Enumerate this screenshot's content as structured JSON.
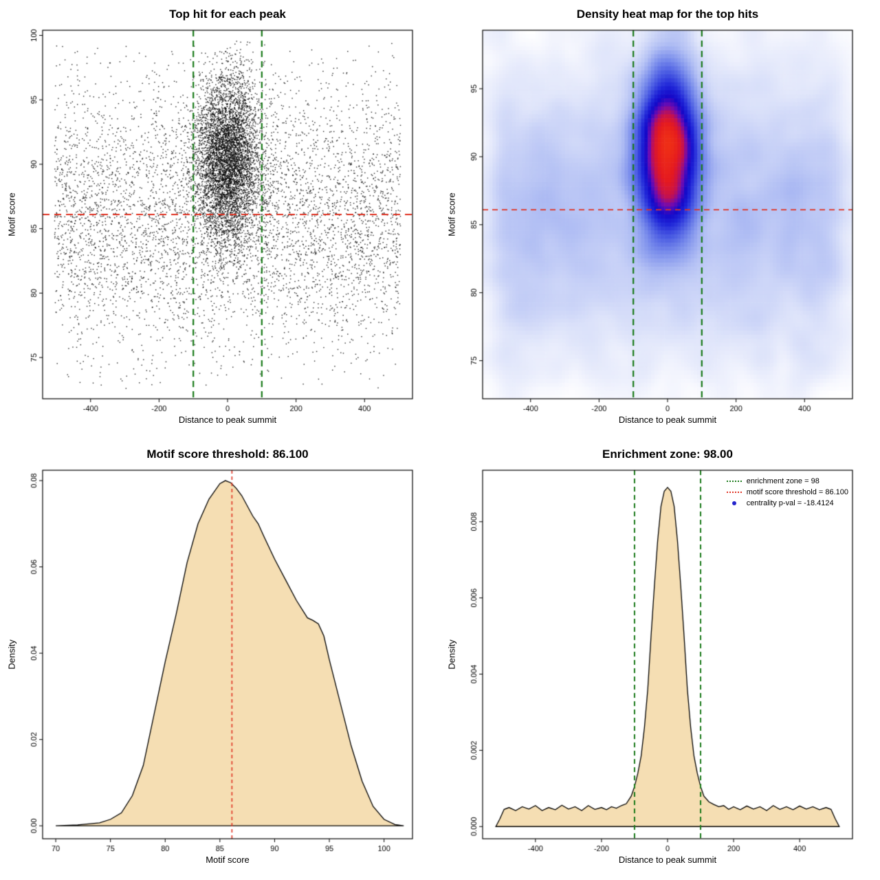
{
  "figure": {
    "background": "#ffffff",
    "frame_color": "#000000",
    "accent_green": "#1a7a1a",
    "accent_red": "#e03222",
    "fill_wheat": "#f5deb3",
    "legend_dot_blue": "#2424cc"
  },
  "stats": {
    "motif_score_threshold": "86.100",
    "enrichment_zone": "98.00",
    "centrality_p_val": "-18.4124"
  },
  "chart_data": [
    {
      "type": "scatter",
      "title": "Top hit for each peak",
      "xlabel": "Distance to peak summit",
      "ylabel": "Motif score",
      "xlim": [
        -540,
        540
      ],
      "ylim": [
        71.8,
        100.4
      ],
      "xticks": [
        -400,
        -200,
        0,
        200,
        400
      ],
      "xtick_labels": [
        "-400",
        "-200",
        "0",
        "200",
        "400"
      ],
      "yticks": [
        75,
        80,
        85,
        90,
        95,
        100
      ],
      "ytick_labels": [
        "75",
        "80",
        "85",
        "90",
        "95",
        "100"
      ],
      "enrichment_zone_x": [
        -100,
        100
      ],
      "motif_score_threshold": 86.1,
      "vline_color": "#1a7a1a",
      "hline_color": "#e03222",
      "point_color": "rgba(0,0,0,0.88)",
      "cloud": {
        "seed": 42,
        "background": {
          "n": 5200,
          "x_min": -505,
          "x_max": 505,
          "y_mean": 86.0,
          "y_sd": 5.4,
          "y_min": 72.3,
          "y_max": 99.4
        },
        "cluster": {
          "n": 5400,
          "x_mean": 0,
          "x_sd": 46,
          "y_mean": 90.4,
          "y_sd": 3.3,
          "y_min": 74.0,
          "y_max": 99.6
        }
      }
    },
    {
      "type": "heatmap",
      "title": "Density heat map for the top hits",
      "xlabel": "Distance to peak summit",
      "ylabel": "Motif score",
      "xlim": [
        -540,
        540
      ],
      "ylim": [
        72.2,
        99.3
      ],
      "xticks": [
        -400,
        -200,
        0,
        200,
        400
      ],
      "xtick_labels": [
        "-400",
        "-200",
        "0",
        "200",
        "400"
      ],
      "yticks": [
        75,
        80,
        85,
        90,
        95
      ],
      "ytick_labels": [
        "75",
        "80",
        "85",
        "90",
        "95"
      ],
      "enrichment_zone_x": [
        -100,
        100
      ],
      "motif_score_threshold": 86.1,
      "vline_color": "#1a7a1a",
      "hline_color": "#e03222",
      "cloud": {
        "seed": 1337,
        "background": {
          "n": 4200,
          "x_min": -505,
          "x_max": 505,
          "y_mean": 85.8,
          "y_sd": 5.2,
          "y_min": 73.0,
          "y_max": 99.0
        },
        "cluster": {
          "n": 7200,
          "x_mean": 0,
          "x_sd": 42,
          "y_mean": 90.2,
          "y_sd": 3.2,
          "y_min": 76.0,
          "y_max": 99.2
        }
      },
      "grid_nx": 112,
      "grid_ny": 92,
      "blur_radius": 2,
      "blur_passes": 3,
      "gamma": 0.42,
      "colormap": [
        [
          0,
          "#ffffff"
        ],
        [
          0.05,
          "#f7f8fe"
        ],
        [
          0.15,
          "#dde3fa"
        ],
        [
          0.28,
          "#b3c0f4"
        ],
        [
          0.4,
          "#7d90ec"
        ],
        [
          0.52,
          "#4859e2"
        ],
        [
          0.62,
          "#1f25d8"
        ],
        [
          0.7,
          "#1408c8"
        ],
        [
          0.78,
          "#6e0bb2"
        ],
        [
          0.85,
          "#c31150"
        ],
        [
          0.92,
          "#e51a1f"
        ],
        [
          1,
          "#ee2e16"
        ]
      ]
    },
    {
      "type": "area",
      "title": "Motif score threshold: 86.100",
      "xlabel": "Motif score",
      "ylabel": "Density",
      "xlim": [
        68.8,
        102.6
      ],
      "ylim": [
        -0.003,
        0.0824
      ],
      "xticks": [
        70,
        75,
        80,
        85,
        90,
        95,
        100
      ],
      "xtick_labels": [
        "70",
        "75",
        "80",
        "85",
        "90",
        "95",
        "100"
      ],
      "yticks": [
        0,
        0.02,
        0.04,
        0.06,
        0.08
      ],
      "ytick_labels": [
        "0.00",
        "0.02",
        "0.04",
        "0.06",
        "0.08"
      ],
      "fill": "#f5deb3",
      "line_color": "#000000",
      "threshold_x": 86.1,
      "vline_color": "#e03222",
      "points": [
        [
          70,
          0
        ],
        [
          72,
          0.0002
        ],
        [
          74,
          0.0007
        ],
        [
          75,
          0.0015
        ],
        [
          76,
          0.003
        ],
        [
          77,
          0.007
        ],
        [
          78,
          0.014
        ],
        [
          79,
          0.026
        ],
        [
          80,
          0.038
        ],
        [
          81,
          0.049
        ],
        [
          82,
          0.061
        ],
        [
          83,
          0.07
        ],
        [
          84,
          0.0757
        ],
        [
          85,
          0.0793
        ],
        [
          85.5,
          0.08
        ],
        [
          86,
          0.0795
        ],
        [
          86.5,
          0.0782
        ],
        [
          87,
          0.0765
        ],
        [
          88,
          0.0718
        ],
        [
          88.5,
          0.07
        ],
        [
          89,
          0.0672
        ],
        [
          90,
          0.0618
        ],
        [
          91,
          0.057
        ],
        [
          92,
          0.0522
        ],
        [
          93,
          0.0482
        ],
        [
          93.5,
          0.0476
        ],
        [
          94,
          0.0468
        ],
        [
          94.5,
          0.044
        ],
        [
          95,
          0.0385
        ],
        [
          96,
          0.0285
        ],
        [
          97,
          0.0185
        ],
        [
          98,
          0.0103
        ],
        [
          99,
          0.0045
        ],
        [
          100,
          0.0015
        ],
        [
          101,
          0.0003
        ],
        [
          101.8,
          0
        ]
      ]
    },
    {
      "type": "area",
      "title": "Enrichment zone: 98.00",
      "xlabel": "Distance to peak summit",
      "ylabel": "Density",
      "xlim": [
        -560,
        560
      ],
      "ylim": [
        -0.00032,
        0.00935
      ],
      "xticks": [
        -400,
        -200,
        0,
        200,
        400
      ],
      "xtick_labels": [
        "-400",
        "-200",
        "0",
        "200",
        "400"
      ],
      "yticks": [
        0,
        0.002,
        0.004,
        0.006,
        0.008
      ],
      "ytick_labels": [
        "0.000",
        "0.002",
        "0.004",
        "0.006",
        "0.008"
      ],
      "fill": "#f5deb3",
      "line_color": "#000000",
      "enrichment_zone_x": [
        -100,
        100
      ],
      "vline_color": "#1a7a1a",
      "points": [
        [
          -520,
          0
        ],
        [
          -508,
          0.0002
        ],
        [
          -495,
          0.00045
        ],
        [
          -480,
          0.0005
        ],
        [
          -460,
          0.00042
        ],
        [
          -440,
          0.00052
        ],
        [
          -420,
          0.00046
        ],
        [
          -400,
          0.00055
        ],
        [
          -380,
          0.00042
        ],
        [
          -360,
          0.0005
        ],
        [
          -340,
          0.00044
        ],
        [
          -320,
          0.00056
        ],
        [
          -300,
          0.00046
        ],
        [
          -280,
          0.00052
        ],
        [
          -260,
          0.00042
        ],
        [
          -240,
          0.00055
        ],
        [
          -220,
          0.00045
        ],
        [
          -200,
          0.0005
        ],
        [
          -185,
          0.00044
        ],
        [
          -170,
          0.00052
        ],
        [
          -155,
          0.00048
        ],
        [
          -140,
          0.00055
        ],
        [
          -125,
          0.0006
        ],
        [
          -110,
          0.0008
        ],
        [
          -100,
          0.00105
        ],
        [
          -90,
          0.0014
        ],
        [
          -80,
          0.00185
        ],
        [
          -70,
          0.0026
        ],
        [
          -60,
          0.0036
        ],
        [
          -50,
          0.005
        ],
        [
          -40,
          0.0063
        ],
        [
          -30,
          0.0075
        ],
        [
          -20,
          0.0084
        ],
        [
          -10,
          0.0088
        ],
        [
          0,
          0.0089
        ],
        [
          10,
          0.0088
        ],
        [
          20,
          0.0084
        ],
        [
          30,
          0.0075
        ],
        [
          40,
          0.0063
        ],
        [
          50,
          0.005
        ],
        [
          60,
          0.0036
        ],
        [
          70,
          0.0026
        ],
        [
          80,
          0.00185
        ],
        [
          90,
          0.0014
        ],
        [
          100,
          0.00105
        ],
        [
          110,
          0.0008
        ],
        [
          125,
          0.00065
        ],
        [
          140,
          0.00058
        ],
        [
          155,
          0.00052
        ],
        [
          170,
          0.00055
        ],
        [
          185,
          0.00045
        ],
        [
          200,
          0.00052
        ],
        [
          220,
          0.00044
        ],
        [
          240,
          0.00054
        ],
        [
          260,
          0.00046
        ],
        [
          280,
          0.00052
        ],
        [
          300,
          0.00042
        ],
        [
          320,
          0.00055
        ],
        [
          340,
          0.00045
        ],
        [
          360,
          0.00052
        ],
        [
          380,
          0.00044
        ],
        [
          400,
          0.00054
        ],
        [
          420,
          0.00046
        ],
        [
          440,
          0.00052
        ],
        [
          460,
          0.00044
        ],
        [
          480,
          0.0005
        ],
        [
          495,
          0.00045
        ],
        [
          508,
          0.0002
        ],
        [
          520,
          0
        ]
      ],
      "legend": {
        "entries": [
          {
            "label": "enrichment zone = 98",
            "symbol": "dotted-line",
            "color": "#1a7a1a"
          },
          {
            "label": "motif score threshold = 86.100",
            "symbol": "dotted-line",
            "color": "#e03222"
          },
          {
            "label": "centrality p-val = -18.4124",
            "symbol": "dot",
            "color": "#2424cc"
          }
        ]
      }
    }
  ]
}
